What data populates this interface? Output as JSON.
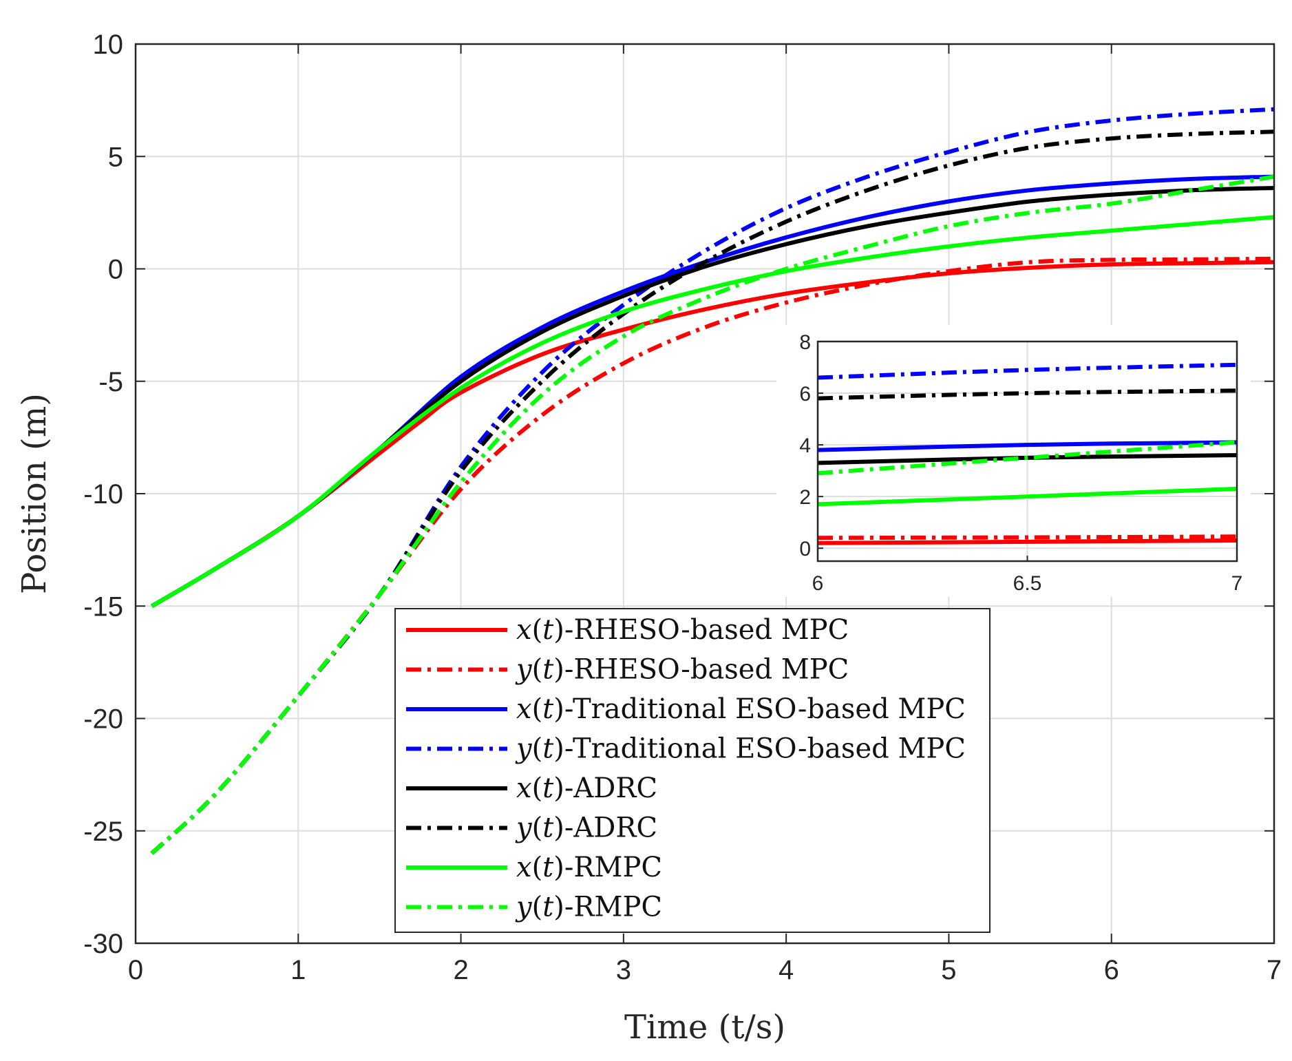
{
  "chart_data": {
    "type": "line",
    "title": "",
    "xlabel": "Time (t/s)",
    "ylabel": "Position (m)",
    "xlim": [
      0,
      7
    ],
    "ylim": [
      -30,
      10
    ],
    "xticks": [
      0,
      1,
      2,
      3,
      4,
      5,
      6,
      7
    ],
    "yticks": [
      -30,
      -25,
      -20,
      -15,
      -10,
      -5,
      0,
      5,
      10
    ],
    "xtick_labels": [
      "0",
      "1",
      "2",
      "3",
      "4",
      "5",
      "6",
      "7"
    ],
    "ytick_labels": [
      "-30",
      "-25",
      "-20",
      "-15",
      "-10",
      "-5",
      "0",
      "5",
      "10"
    ],
    "grid": true,
    "legend_position": "lower-center",
    "series": [
      {
        "name": "x(t)-RHESO-based MPC",
        "var": "x",
        "suffix": "-RHESO-based MPC",
        "color": "#ff0000",
        "style": "solid",
        "x": [
          0.1,
          0.5,
          1.0,
          1.5,
          1.75,
          2.0,
          2.5,
          3.0,
          3.5,
          4.0,
          4.5,
          5.0,
          5.5,
          6.0,
          6.5,
          7.0
        ],
        "y": [
          -15.0,
          -13.3,
          -11.0,
          -8.2,
          -6.8,
          -5.5,
          -3.8,
          -2.7,
          -1.8,
          -1.1,
          -0.6,
          -0.2,
          0.05,
          0.2,
          0.25,
          0.3
        ]
      },
      {
        "name": "y(t)-RHESO-based MPC",
        "var": "y",
        "suffix": "-RHESO-based MPC",
        "color": "#ff0000",
        "style": "dashdot",
        "x": [
          0.1,
          0.5,
          1.0,
          1.5,
          2.0,
          2.5,
          3.0,
          3.5,
          4.0,
          4.5,
          5.0,
          5.5,
          6.0,
          6.5,
          7.0
        ],
        "y": [
          -26.0,
          -23.3,
          -19.0,
          -14.5,
          -9.8,
          -6.5,
          -4.2,
          -2.6,
          -1.5,
          -0.7,
          -0.1,
          0.3,
          0.4,
          0.42,
          0.45
        ]
      },
      {
        "name": "x(t)-Traditional ESO-based MPC",
        "var": "x",
        "suffix": "-Traditional ESO-based MPC",
        "color": "#0000ff",
        "style": "solid",
        "x": [
          0.1,
          0.5,
          1.0,
          1.5,
          2.0,
          2.5,
          3.0,
          3.5,
          4.0,
          4.5,
          5.0,
          5.5,
          6.0,
          6.5,
          7.0
        ],
        "y": [
          -15.0,
          -13.3,
          -11.0,
          -8.0,
          -4.8,
          -2.6,
          -1.0,
          0.3,
          1.4,
          2.3,
          3.0,
          3.5,
          3.8,
          4.0,
          4.1
        ]
      },
      {
        "name": "y(t)-Traditional ESO-based MPC",
        "var": "y",
        "suffix": "-Traditional ESO-based MPC",
        "color": "#0000ff",
        "style": "dashdot",
        "x": [
          0.1,
          0.5,
          1.0,
          1.5,
          2.0,
          2.5,
          3.0,
          3.5,
          4.0,
          4.5,
          5.0,
          5.5,
          6.0,
          6.5,
          7.0
        ],
        "y": [
          -26.0,
          -23.3,
          -19.0,
          -14.5,
          -8.8,
          -4.6,
          -1.6,
          0.8,
          2.7,
          4.1,
          5.2,
          6.1,
          6.6,
          6.9,
          7.1
        ]
      },
      {
        "name": "x(t)-ADRC",
        "var": "x",
        "suffix": "-ADRC",
        "color": "#000000",
        "style": "solid",
        "x": [
          0.1,
          0.5,
          1.0,
          1.5,
          2.0,
          2.5,
          3.0,
          3.5,
          4.0,
          4.5,
          5.0,
          5.5,
          6.0,
          6.5,
          7.0
        ],
        "y": [
          -15.0,
          -13.3,
          -11.0,
          -8.0,
          -5.0,
          -2.8,
          -1.2,
          0.1,
          1.1,
          1.9,
          2.5,
          3.0,
          3.3,
          3.5,
          3.6
        ]
      },
      {
        "name": "y(t)-ADRC",
        "var": "y",
        "suffix": "-ADRC",
        "color": "#000000",
        "style": "dashdot",
        "x": [
          0.1,
          0.5,
          1.0,
          1.5,
          2.0,
          2.5,
          3.0,
          3.5,
          4.0,
          4.5,
          5.0,
          5.5,
          6.0,
          6.5,
          7.0
        ],
        "y": [
          -26.0,
          -23.3,
          -19.0,
          -14.5,
          -9.0,
          -5.0,
          -2.0,
          0.3,
          2.1,
          3.5,
          4.6,
          5.4,
          5.8,
          6.0,
          6.1
        ]
      },
      {
        "name": "x(t)-RMPC",
        "var": "x",
        "suffix": "-RMPC",
        "color": "#00ff00",
        "style": "solid",
        "x": [
          0.1,
          0.5,
          1.0,
          1.5,
          2.0,
          2.5,
          3.0,
          3.5,
          4.0,
          4.5,
          5.0,
          5.5,
          6.0,
          6.5,
          7.0
        ],
        "y": [
          -15.0,
          -13.3,
          -11.0,
          -8.0,
          -5.3,
          -3.3,
          -1.9,
          -0.9,
          -0.1,
          0.5,
          1.0,
          1.4,
          1.7,
          2.0,
          2.3
        ]
      },
      {
        "name": "y(t)-RMPC",
        "var": "y",
        "suffix": "-RMPC",
        "color": "#00ff00",
        "style": "dashdot",
        "x": [
          0.1,
          0.5,
          1.0,
          1.5,
          2.0,
          2.5,
          3.0,
          3.5,
          4.0,
          4.5,
          5.0,
          5.5,
          6.0,
          6.5,
          7.0
        ],
        "y": [
          -26.0,
          -23.3,
          -19.0,
          -14.5,
          -9.5,
          -5.6,
          -3.0,
          -1.3,
          0.0,
          1.0,
          1.9,
          2.5,
          2.9,
          3.5,
          4.1
        ]
      }
    ],
    "inset": {
      "xlim": [
        6,
        7
      ],
      "ylim": [
        -0.5,
        8
      ],
      "xticks": [
        6,
        6.5,
        7
      ],
      "yticks": [
        0,
        2,
        4,
        6,
        8
      ],
      "xtick_labels": [
        "6",
        "6.5",
        "7"
      ],
      "ytick_labels": [
        "0",
        "2",
        "4",
        "6",
        "8"
      ]
    }
  }
}
